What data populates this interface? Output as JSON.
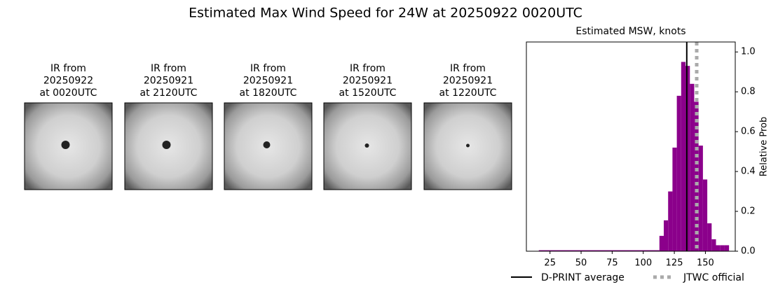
{
  "title": "Estimated Max Wind Speed for 24W at 20250922 0020UTC",
  "panels": [
    {
      "caption": [
        "IR from",
        "20250922",
        "at 0020UTC"
      ]
    },
    {
      "caption": [
        "IR from",
        "20250921",
        "at 2120UTC"
      ]
    },
    {
      "caption": [
        "IR from",
        "20250921",
        "at 1820UTC"
      ]
    },
    {
      "caption": [
        "IR from",
        "20250921",
        "at 1520UTC"
      ]
    },
    {
      "caption": [
        "IR from",
        "20250921",
        "at 1220UTC"
      ]
    }
  ],
  "chart_data": {
    "type": "histogram",
    "title": "Estimated MSW, knots",
    "y_label": "Relative Prob",
    "color": "#8b008b",
    "bins": [
      16,
      113,
      116.5,
      120,
      123.5,
      127,
      130.5,
      134,
      137.5,
      141,
      144.5,
      148,
      151.5,
      155,
      158.5,
      162,
      165.5,
      169
    ],
    "counts": [
      0.005,
      0.077,
      0.155,
      0.3,
      0.52,
      0.78,
      0.95,
      0.93,
      0.84,
      0.75,
      0.53,
      0.36,
      0.14,
      0.06,
      0.03,
      0.03,
      0.03
    ],
    "xlim": [
      6,
      174
    ],
    "xticks": [
      25,
      50,
      75,
      100,
      125,
      150
    ],
    "ylim": [
      0,
      1.05
    ],
    "yticks": [
      {
        "value": 0,
        "label": "0.0"
      },
      {
        "value": 0.2,
        "label": "0.2"
      },
      {
        "value": 0.4,
        "label": "0.4"
      },
      {
        "value": 0.6,
        "label": "0.6"
      },
      {
        "value": 0.8,
        "label": "0.8"
      },
      {
        "value": 1,
        "label": "1.0"
      }
    ],
    "lines": [
      {
        "name": "D-PRINT average",
        "value": 135,
        "color": "#000000",
        "style": "solid"
      },
      {
        "name": "JTWC official",
        "value": 143,
        "color": "#aaaaaa",
        "style": "dotted"
      }
    ]
  }
}
